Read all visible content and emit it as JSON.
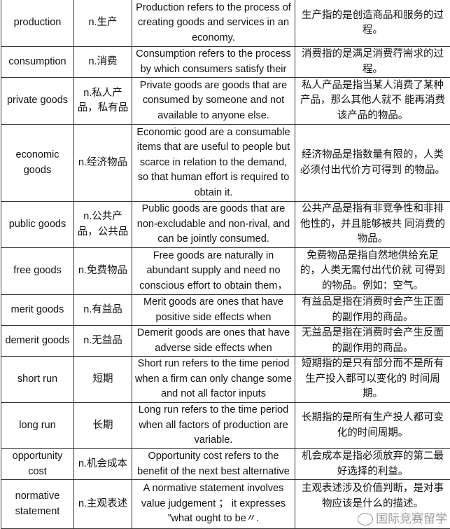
{
  "rows": [
    {
      "term": "production",
      "cn": "n.生产",
      "en_def": "Production refers to the process of creating goods and services in an economy.",
      "cn_def": "生产指的是创造商品和服务的过程。"
    },
    {
      "term": "consumption",
      "cn": "n.消费",
      "en_def": "Consumption refers to the process by which consumers satisfy their",
      "cn_def": "消费指的是满足消费荇耑求的过程。"
    },
    {
      "term": "private goods",
      "cn": "n.私人产品，私有品",
      "en_def": "Private goods are goods that are consumed by someone and not available to anyone else.",
      "cn_def": "私人产品是指当某人消费了某种产品，那么其他人就不 能再消费该产品的物品。"
    },
    {
      "term": "economic goods",
      "cn": "n.经济物品",
      "en_def": "Economic good are a consumable items that are useful to people but scarce in relation to the demand, so that human effort is required to obtain it.",
      "cn_def": "经济物品是指数量有限的，人类必须付出代价方可得到 的物品。"
    },
    {
      "term": "public goods",
      "cn": "n.公共产品，公共品",
      "en_def": "Public goods are goods that are non-excludable and non-rival, and can be jointly consumed.",
      "cn_def": "公共产品是指有非竞争性和非排他性的，并且能够被共 同消费的物品。"
    },
    {
      "term": "free goods",
      "cn": "n.免费物品",
      "en_def": "Free goods are naturally in abundant supply and need no conscious effort to obtain them，",
      "cn_def": "免费物品是指自然地供给充足的，人类无需付出代价就 可得到的物品。例如：空气。"
    },
    {
      "term": "merit goods",
      "cn": "n.有益品",
      "en_def": "Merit goods are ones that have positive side effects when",
      "cn_def": "有益品是指在消费时会产生正面的副作用的商品。"
    },
    {
      "term": "demerit goods",
      "cn": "n.无益品",
      "en_def": "Demerit goods are ones that have adverse side effects when",
      "cn_def": "无益品是指在消费时会产生反面的副作用的商品。"
    },
    {
      "term": "short run",
      "cn": "短期",
      "en_def": "Short run refers to the time period when a firm can only change some and not all factor inputs",
      "cn_def": "短期指的是只有部分而不是所有生产投入都可以变化的 时间周期。"
    },
    {
      "term": "long run",
      "cn": "长期",
      "en_def": "Long run refers to the time period when all factors of production are variable.",
      "cn_def": "长期指的是所有生产投人都可变化的时间周期。"
    },
    {
      "term": "opportunity cost",
      "cn": "n.机会成本",
      "en_def": "Opportunity cost refers to the benefit of the next best alternative",
      "cn_def": "机会成本是指必须放弃的第二最好选择的利益。"
    },
    {
      "term": "normative statement",
      "cn": "n.主观表述",
      "en_def": "A normative statement involves value judgement ； it expresses ”what ought to be〃.",
      "cn_def": "主观表述涉及价值判断，是对事物应该是什么的描述。"
    }
  ],
  "watermark": {
    "text": "国际竞赛留学",
    "icon": "wechat-icon"
  }
}
